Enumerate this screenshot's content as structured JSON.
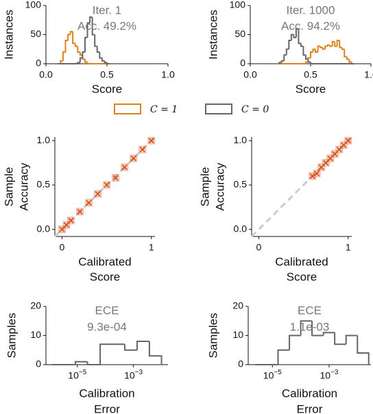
{
  "chart_data": [
    {
      "type": "histogram",
      "ylabel": [
        "Instances"
      ],
      "xlabel": [
        "Score"
      ],
      "annotations": [
        "Iter. 1",
        "Acc. 49.2%"
      ],
      "xlim": [
        0,
        1
      ],
      "ylim": [
        0,
        100
      ],
      "xticks": [
        {
          "value": 0,
          "label": "0.0"
        },
        {
          "value": 0.5,
          "label": "0.5"
        },
        {
          "value": 1,
          "label": "1.0"
        }
      ],
      "yticks": [
        0,
        50,
        100
      ],
      "bins": [
        0.1,
        0.12,
        0.14,
        0.16,
        0.18,
        0.2,
        0.22,
        0.24,
        0.26,
        0.28,
        0.3,
        0.32,
        0.34,
        0.36,
        0.38,
        0.4,
        0.42,
        0.44,
        0.46,
        0.48,
        0.5,
        0.52
      ],
      "series": [
        {
          "name": "C = 1",
          "color": "#dc8219",
          "values": [
            0,
            5,
            20,
            40,
            50,
            55,
            35,
            30,
            20,
            15,
            8,
            3,
            0,
            0,
            0,
            0,
            0,
            0,
            0,
            0,
            0
          ]
        },
        {
          "name": "C = 0",
          "color": "#666666",
          "values": [
            0,
            0,
            0,
            0,
            0,
            0,
            0,
            0,
            2,
            10,
            20,
            45,
            70,
            80,
            50,
            30,
            20,
            10,
            5,
            2,
            0
          ]
        }
      ]
    },
    {
      "type": "histogram",
      "ylabel": [
        "Instances"
      ],
      "xlabel": [
        "Score"
      ],
      "annotations": [
        "Iter. 1000",
        "Acc. 94.2%"
      ],
      "xlim": [
        0,
        1
      ],
      "ylim": [
        0,
        100
      ],
      "xticks": [
        {
          "value": 0,
          "label": "0.0"
        },
        {
          "value": 0.5,
          "label": "0.5"
        },
        {
          "value": 1,
          "label": "1.0"
        }
      ],
      "yticks": [
        0,
        50,
        100
      ],
      "bins": [
        0.24,
        0.26,
        0.28,
        0.3,
        0.32,
        0.34,
        0.36,
        0.38,
        0.4,
        0.42,
        0.44,
        0.46,
        0.48,
        0.5,
        0.52,
        0.54,
        0.56,
        0.58,
        0.6,
        0.62,
        0.64,
        0.66,
        0.68,
        0.7,
        0.72,
        0.74,
        0.76,
        0.78,
        0.8,
        0.82,
        0.84,
        0.86
      ],
      "series": [
        {
          "color": "#dc8219",
          "values": [
            0,
            0,
            0,
            0,
            0,
            0,
            0,
            0,
            0,
            0,
            0,
            3,
            10,
            20,
            25,
            20,
            30,
            28,
            25,
            30,
            32,
            30,
            38,
            30,
            40,
            28,
            25,
            12,
            8,
            3,
            0
          ]
        },
        {
          "color": "#666666",
          "values": [
            2,
            5,
            15,
            25,
            40,
            50,
            45,
            60,
            35,
            30,
            15,
            8,
            3,
            0,
            0,
            0,
            0,
            0,
            0,
            0,
            0,
            0,
            0,
            0,
            0,
            0,
            0,
            0,
            0,
            0,
            0
          ]
        }
      ]
    },
    {
      "type": "scatter",
      "ylabel": [
        "Sample",
        "Accuracy"
      ],
      "xlabel": [
        "Calibrated",
        "Score"
      ],
      "xlim": [
        -0.08,
        1.04
      ],
      "ylim": [
        -0.08,
        1.04
      ],
      "xticks": [
        0,
        1
      ],
      "yticks": [
        {
          "value": 0,
          "label": "0.0"
        },
        {
          "value": 0.5,
          "label": "0.5"
        },
        {
          "value": 1,
          "label": "1.0"
        }
      ],
      "color": "#d9541e",
      "x": [
        0,
        0.05,
        0.1,
        0.2,
        0.3,
        0.4,
        0.5,
        0.6,
        0.7,
        0.8,
        0.9,
        1
      ],
      "values": [
        0,
        0.05,
        0.1,
        0.2,
        0.3,
        0.4,
        0.5,
        0.58,
        0.7,
        0.8,
        0.9,
        1
      ]
    },
    {
      "type": "scatter",
      "ylabel": [
        "Sample",
        "Accuracy"
      ],
      "xlabel": [
        "Calibrated",
        "Score"
      ],
      "xlim": [
        -0.08,
        1.04
      ],
      "ylim": [
        -0.08,
        1.04
      ],
      "xticks": [
        0,
        1
      ],
      "yticks": [
        {
          "value": 0,
          "label": "0.0"
        },
        {
          "value": 0.5,
          "label": "0.5"
        },
        {
          "value": 1,
          "label": "1.0"
        }
      ],
      "color": "#d9541e",
      "x": [
        0.6,
        0.65,
        0.7,
        0.75,
        0.8,
        0.85,
        0.9,
        0.95,
        1
      ],
      "values": [
        0.6,
        0.63,
        0.7,
        0.75,
        0.8,
        0.85,
        0.9,
        0.95,
        1
      ]
    },
    {
      "type": "histogram",
      "ylabel": [
        "Samples"
      ],
      "xlabel": [
        "Calibration",
        "Error"
      ],
      "annotations": [
        "ECE",
        "9.3e-04"
      ],
      "log_x": true,
      "xlim": [
        7.6e-07,
        0.017
      ],
      "ylim": [
        0,
        20
      ],
      "xticks": [
        {
          "value": 1e-05,
          "label": "10^−5"
        },
        {
          "value": 0.001,
          "label": "10^−3"
        }
      ],
      "yticks": [
        0,
        10,
        20
      ],
      "bins": [
        1.2e-06,
        3.2e-06,
        8.5e-06,
        2.3e-05,
        6.5e-05,
        0.00018,
        0.00049,
        0.00135,
        0.0037,
        0.01
      ],
      "series": [
        {
          "color": "#666666",
          "values": [
            0,
            0,
            1,
            0,
            7,
            7,
            5,
            8,
            3
          ]
        }
      ]
    },
    {
      "type": "histogram",
      "ylabel": [
        "Samples"
      ],
      "xlabel": [
        "Calibration",
        "Error"
      ],
      "annotations": [
        "ECE",
        "1.1e-03"
      ],
      "log_x": true,
      "xlim": [
        1.4e-06,
        0.03
      ],
      "ylim": [
        0,
        20
      ],
      "xticks": [
        {
          "value": 1e-05,
          "label": "10^−5"
        },
        {
          "value": 0.001,
          "label": "10^−3"
        }
      ],
      "yticks": [
        0,
        10,
        20
      ],
      "bins": [
        2.5e-06,
        6.3e-06,
        1.58e-05,
        3.98e-05,
        0.0001,
        0.00025,
        0.00063,
        0.00158,
        0.00398,
        0.01,
        0.025
      ],
      "series": [
        {
          "color": "#666666",
          "values": [
            0,
            0,
            5,
            10,
            15,
            10,
            11,
            7,
            10,
            4
          ]
        }
      ]
    }
  ]
}
